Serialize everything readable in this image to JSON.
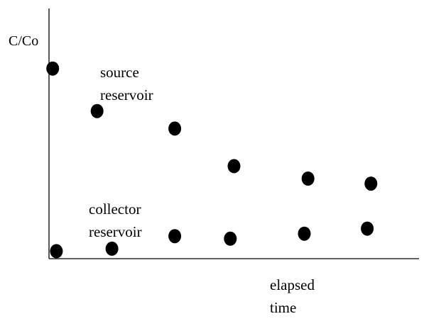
{
  "chart_data": {
    "type": "scatter",
    "title": "",
    "xlabel": "elapsed time",
    "xlabel_lines": [
      "elapsed",
      "time"
    ],
    "ylabel": "C/Co",
    "ticks": "none",
    "grid": false,
    "legend": "none",
    "series": [
      {
        "name": "source reservoir",
        "name_lines": [
          "source",
          "reservoir"
        ],
        "x": [
          0.01,
          0.13,
          0.34,
          0.5,
          0.7,
          0.87
        ],
        "y": [
          0.76,
          0.59,
          0.52,
          0.37,
          0.32,
          0.3
        ]
      },
      {
        "name": "collector reservoir",
        "name_lines": [
          "collector",
          "reservoir"
        ],
        "x": [
          0.02,
          0.17,
          0.34,
          0.49,
          0.69,
          0.86
        ],
        "y": [
          0.03,
          0.04,
          0.09,
          0.08,
          0.1,
          0.12
        ]
      }
    ],
    "xlim": [
      0,
      1
    ],
    "ylim": [
      0,
      1
    ],
    "colors": {
      "points": "#000000",
      "axes": "#000000",
      "background": "#ffffff"
    }
  }
}
